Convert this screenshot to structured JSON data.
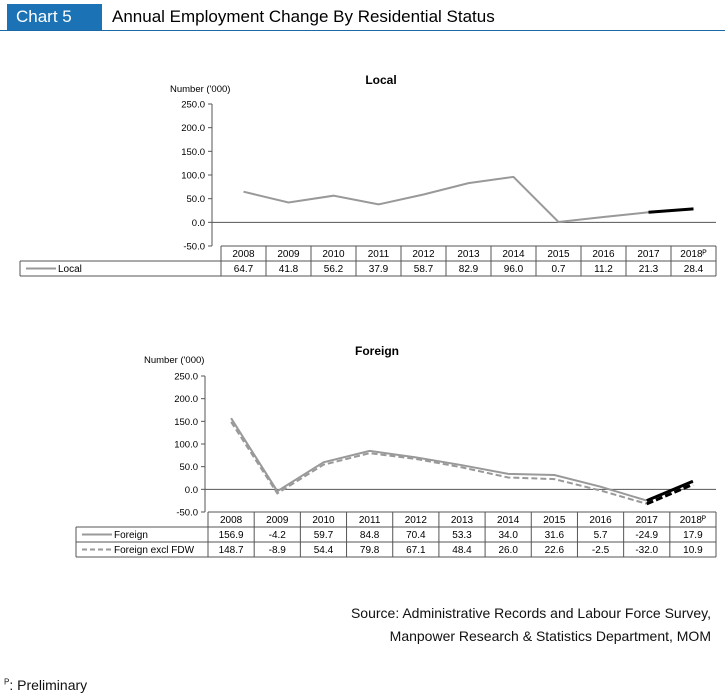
{
  "header": {
    "tag": "Chart 5",
    "title": "Annual Employment Change By Residential Status"
  },
  "chart_data": [
    {
      "type": "line",
      "title": "Local",
      "ylabel": "Number ('000)",
      "ylim": [
        -50,
        250
      ],
      "yticks": [
        "250.0",
        "200.0",
        "150.0",
        "100.0",
        "50.0",
        "0.0",
        "-50.0"
      ],
      "categories": [
        "2008",
        "2009",
        "2010",
        "2011",
        "2012",
        "2013",
        "2014",
        "2015",
        "2016",
        "2017",
        "2018ᴾ"
      ],
      "series": [
        {
          "name": "Local",
          "values": [
            64.7,
            41.8,
            56.2,
            37.9,
            58.7,
            82.9,
            96.0,
            0.7,
            11.2,
            21.3,
            28.4
          ],
          "labels": [
            "64.7",
            "41.8",
            "56.2",
            "37.9",
            "58.7",
            "82.9",
            "96.0",
            "0.7",
            "11.2",
            "21.3",
            "28.4"
          ],
          "color": "#999999",
          "style": "solid"
        }
      ],
      "highlight_last_segment_color": "#000000"
    },
    {
      "type": "line",
      "title": "Foreign",
      "ylabel": "Number ('000)",
      "ylim": [
        -50,
        250
      ],
      "yticks": [
        "250.0",
        "200.0",
        "150.0",
        "100.0",
        "50.0",
        "0.0",
        "-50.0"
      ],
      "categories": [
        "2008",
        "2009",
        "2010",
        "2011",
        "2012",
        "2013",
        "2014",
        "2015",
        "2016",
        "2017",
        "2018ᴾ"
      ],
      "series": [
        {
          "name": "Foreign",
          "values": [
            156.9,
            -4.2,
            59.7,
            84.8,
            70.4,
            53.3,
            34.0,
            31.6,
            5.7,
            -24.9,
            17.9
          ],
          "labels": [
            "156.9",
            "-4.2",
            "59.7",
            "84.8",
            "70.4",
            "53.3",
            "34.0",
            "31.6",
            "5.7",
            "-24.9",
            "17.9"
          ],
          "color": "#999999",
          "style": "solid"
        },
        {
          "name": "Foreign excl FDW",
          "values": [
            148.7,
            -8.9,
            54.4,
            79.8,
            67.1,
            48.4,
            26.0,
            22.6,
            -2.5,
            -32.0,
            10.9
          ],
          "labels": [
            "148.7",
            "-8.9",
            "54.4",
            "79.8",
            "67.1",
            "48.4",
            "26.0",
            "22.6",
            "-2.5",
            "-32.0",
            "10.9"
          ],
          "color": "#999999",
          "style": "dashed"
        }
      ],
      "highlight_last_segment_color": "#000000"
    }
  ],
  "source": {
    "line1": "Source: Administrative Records and Labour Force Survey,",
    "line2": "Manpower Research & Statistics Department, MOM"
  },
  "footnote": {
    "mark": "P",
    "text": ": Preliminary"
  }
}
